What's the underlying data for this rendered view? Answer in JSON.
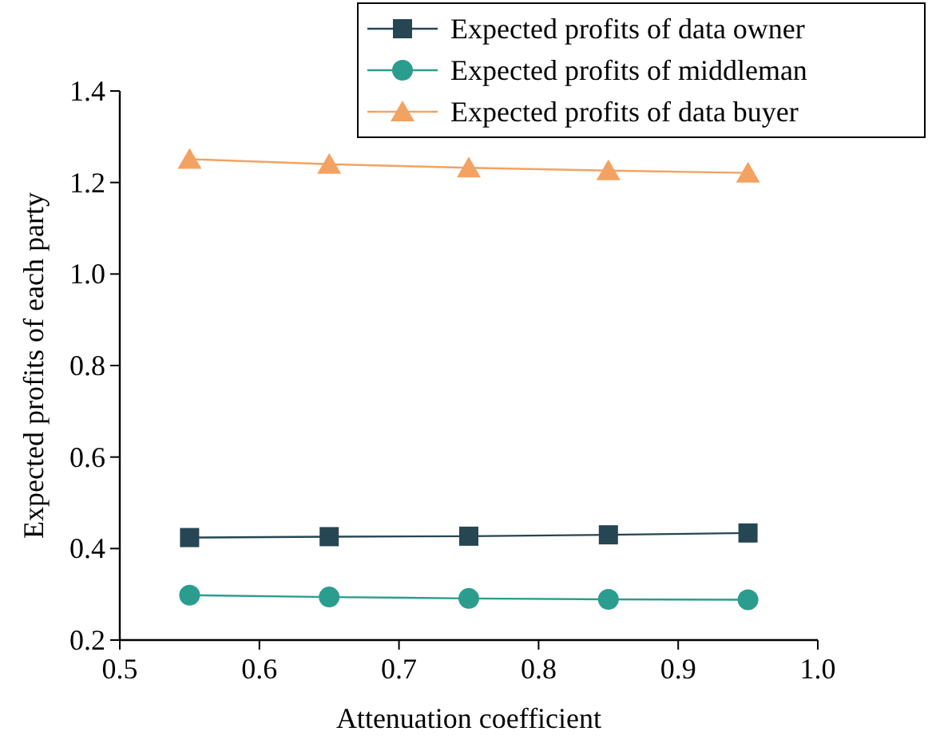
{
  "chart_data": {
    "type": "line",
    "xlabel": "Attenuation coefficient",
    "ylabel": "Expected profits of each party",
    "x": [
      0.55,
      0.65,
      0.75,
      0.85,
      0.95
    ],
    "series": [
      {
        "name": "Expected profits of data owner",
        "color": "#264653",
        "marker": "square",
        "values": [
          0.424,
          0.426,
          0.427,
          0.43,
          0.434
        ]
      },
      {
        "name": "Expected profits of middleman",
        "color": "#2a9d8f",
        "marker": "circle",
        "values": [
          0.298,
          0.294,
          0.291,
          0.289,
          0.288
        ]
      },
      {
        "name": "Expected profits of data buyer",
        "color": "#f4a261",
        "marker": "triangle",
        "values": [
          1.251,
          1.24,
          1.232,
          1.226,
          1.221
        ]
      }
    ],
    "xlim": [
      0.5,
      1.0
    ],
    "xticks": [
      0.5,
      0.6,
      0.7,
      0.8,
      0.9,
      {
        "value": 1,
        "label": "1.0"
      }
    ],
    "ylim": [
      0.2,
      1.4
    ],
    "yticks": [
      0.2,
      0.4,
      0.6,
      0.8,
      {
        "value": 1,
        "label": "1.0"
      },
      1.2,
      1.4
    ],
    "legend": "top right",
    "grid": false,
    "line_style": "solid"
  }
}
